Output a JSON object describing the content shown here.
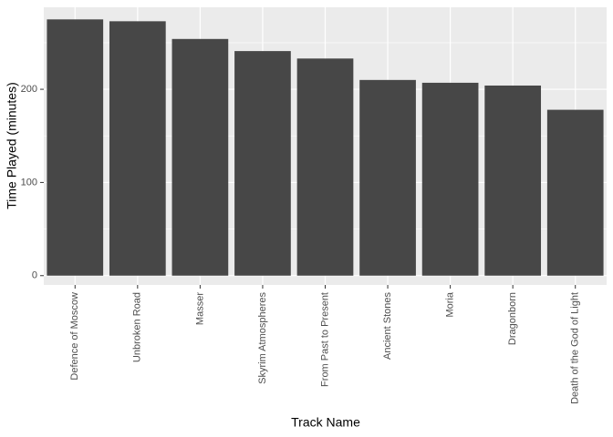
{
  "chart_data": {
    "type": "bar",
    "x_label": "Track Name",
    "y_label": "Time Played (minutes)",
    "categories": [
      "Defence of Moscow",
      "Unbroken Road",
      "Masser",
      "Skyrim Atmospheres",
      "From Past to Present",
      "Ancient Stones",
      "Moria",
      "Dragonborn",
      "Death of the God of Light"
    ],
    "values": [
      275,
      273,
      254,
      241,
      233,
      210,
      207,
      204,
      178
    ],
    "color": "#474747",
    "ylim": [
      -10,
      288
    ],
    "yticks": [
      0,
      100,
      200
    ],
    "minor_yticks": [
      50,
      150,
      250
    ],
    "grid": true
  }
}
